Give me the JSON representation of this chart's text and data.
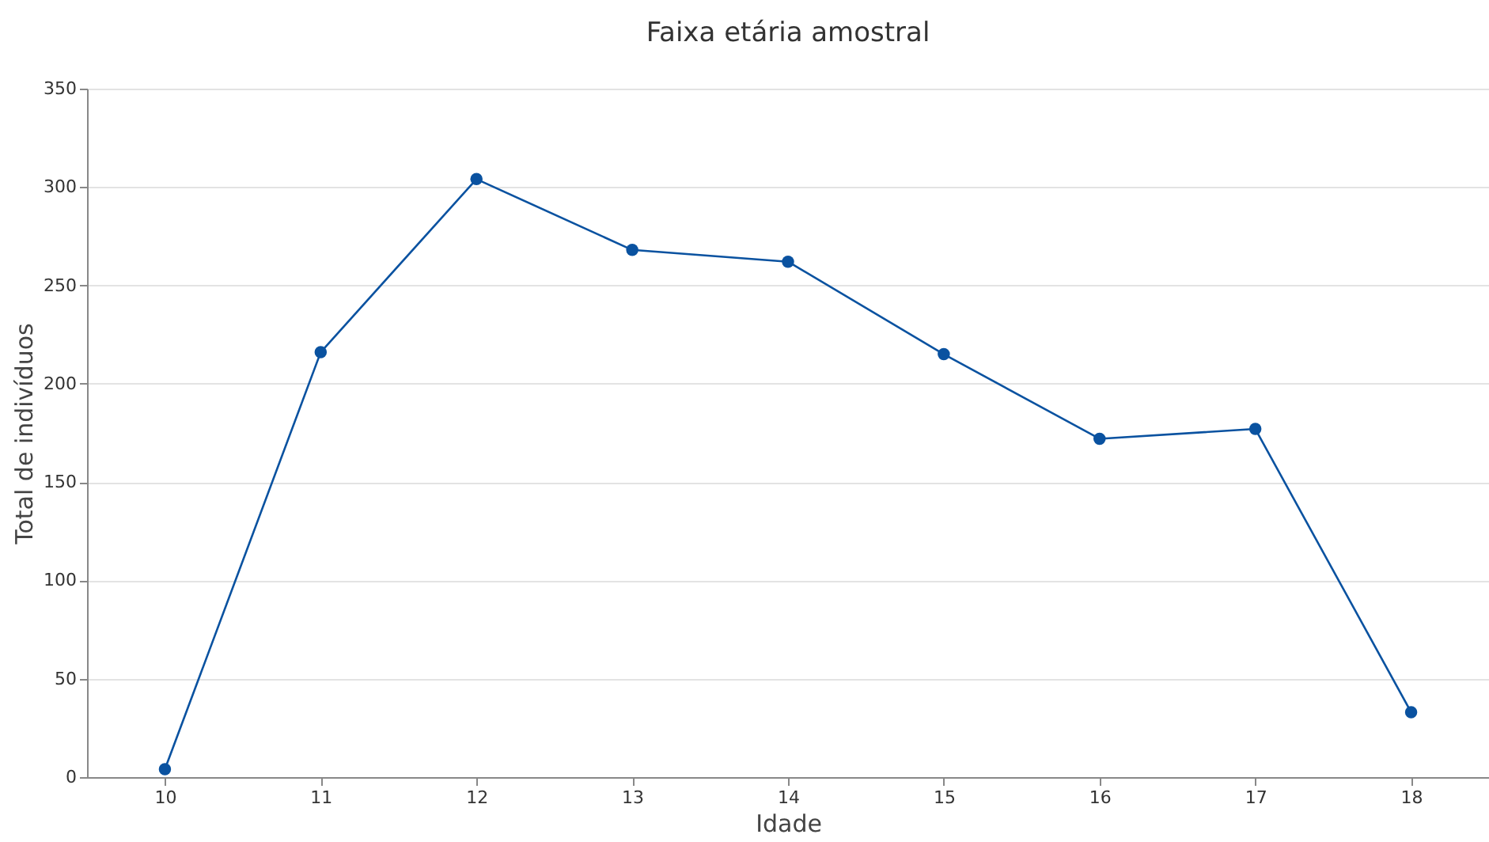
{
  "chart_data": {
    "type": "line",
    "title": "Faixa etária amostral",
    "xlabel": "Idade",
    "ylabel": "Total de indivíduos",
    "categories": [
      "10",
      "11",
      "12",
      "13",
      "14",
      "15",
      "16",
      "17",
      "18"
    ],
    "series": [
      {
        "color": "#0a52a0",
        "values": [
          4,
          216,
          304,
          268,
          262,
          215,
          172,
          177,
          33
        ]
      }
    ],
    "ylim": [
      0,
      350
    ],
    "yticks": [
      0,
      50,
      100,
      150,
      200,
      250,
      300,
      350
    ],
    "grid": "y",
    "marker": "circle",
    "line_style": "solid"
  }
}
